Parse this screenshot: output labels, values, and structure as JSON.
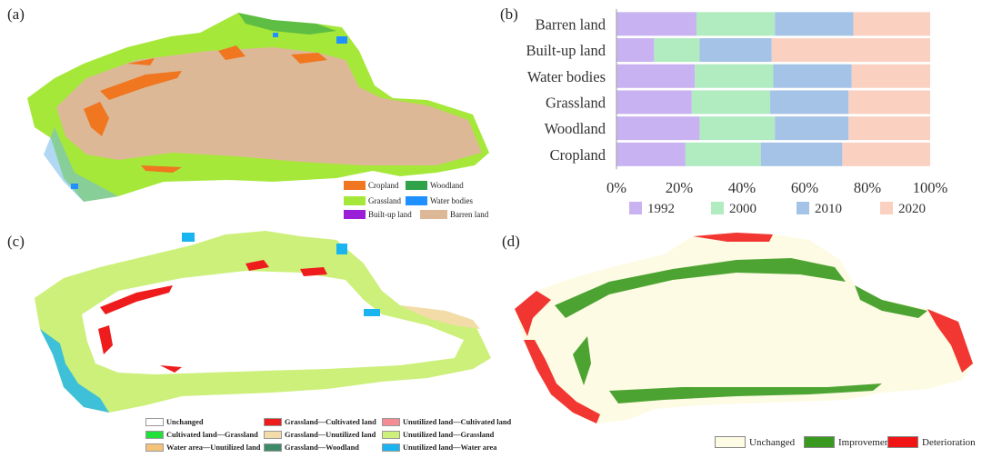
{
  "panels": {
    "a": "(a)",
    "b": "(b)",
    "c": "(c)",
    "d": "(d)"
  },
  "legend_a": [
    {
      "label": "Cropland",
      "color": "#f07620"
    },
    {
      "label": "Woodland",
      "color": "#2fa24a"
    },
    {
      "label": "Grassland",
      "color": "#a6e83a"
    },
    {
      "label": "Water bodies",
      "color": "#1e90ff"
    },
    {
      "label": "Built-up land",
      "color": "#9b1fd6"
    },
    {
      "label": "Barren land",
      "color": "#ddb896"
    }
  ],
  "legend_c": [
    {
      "label": "Unchanged",
      "color": "#ffffff"
    },
    {
      "label": "Grassland—Cultivated land",
      "color": "#ee1c1c"
    },
    {
      "label": "Unutilized land—Cultivated land",
      "color": "#f58c95"
    },
    {
      "label": "Cultivated land—Grassland",
      "color": "#22e03a"
    },
    {
      "label": "Grassland—Unutilized land",
      "color": "#f3dca8"
    },
    {
      "label": "Unutilized land—Grassland",
      "color": "#ccf07a"
    },
    {
      "label": "Water area—Unutilized land",
      "color": "#f5c27a"
    },
    {
      "label": "Grassland—Woodland",
      "color": "#3d8a6a"
    },
    {
      "label": "Unutilized land—Water area",
      "color": "#1ab4f0"
    }
  ],
  "legend_d": [
    {
      "label": "Unchanged",
      "color": "#fdfbe3"
    },
    {
      "label": "Improvement",
      "color": "#3a9a1f"
    },
    {
      "label": "Deterioration",
      "color": "#f01414"
    }
  ],
  "chart_data": {
    "type": "bar",
    "orientation": "horizontal",
    "stacked": "percent",
    "categories": [
      "Barren land",
      "Built-up land",
      "Water bodies",
      "Grassland",
      "Woodland",
      "Cropland"
    ],
    "series": [
      {
        "name": "1992",
        "color": "#c9b2f2",
        "values": [
          25.5,
          12,
          25,
          24,
          26.5,
          22
        ]
      },
      {
        "name": "2000",
        "color": "#b0ecc0",
        "values": [
          25,
          14.5,
          25,
          25,
          24,
          24
        ]
      },
      {
        "name": "2010",
        "color": "#a5c3e6",
        "values": [
          25,
          23,
          25,
          25,
          23.5,
          26
        ]
      },
      {
        "name": "2020",
        "color": "#fad1c1",
        "values": [
          24.5,
          50.5,
          25,
          26,
          26,
          28
        ]
      }
    ],
    "xlim": [
      0,
      100
    ],
    "x_ticks": [
      "0%",
      "20%",
      "40%",
      "60%",
      "80%",
      "100%"
    ],
    "legend_position": "bottom",
    "grid": false
  }
}
